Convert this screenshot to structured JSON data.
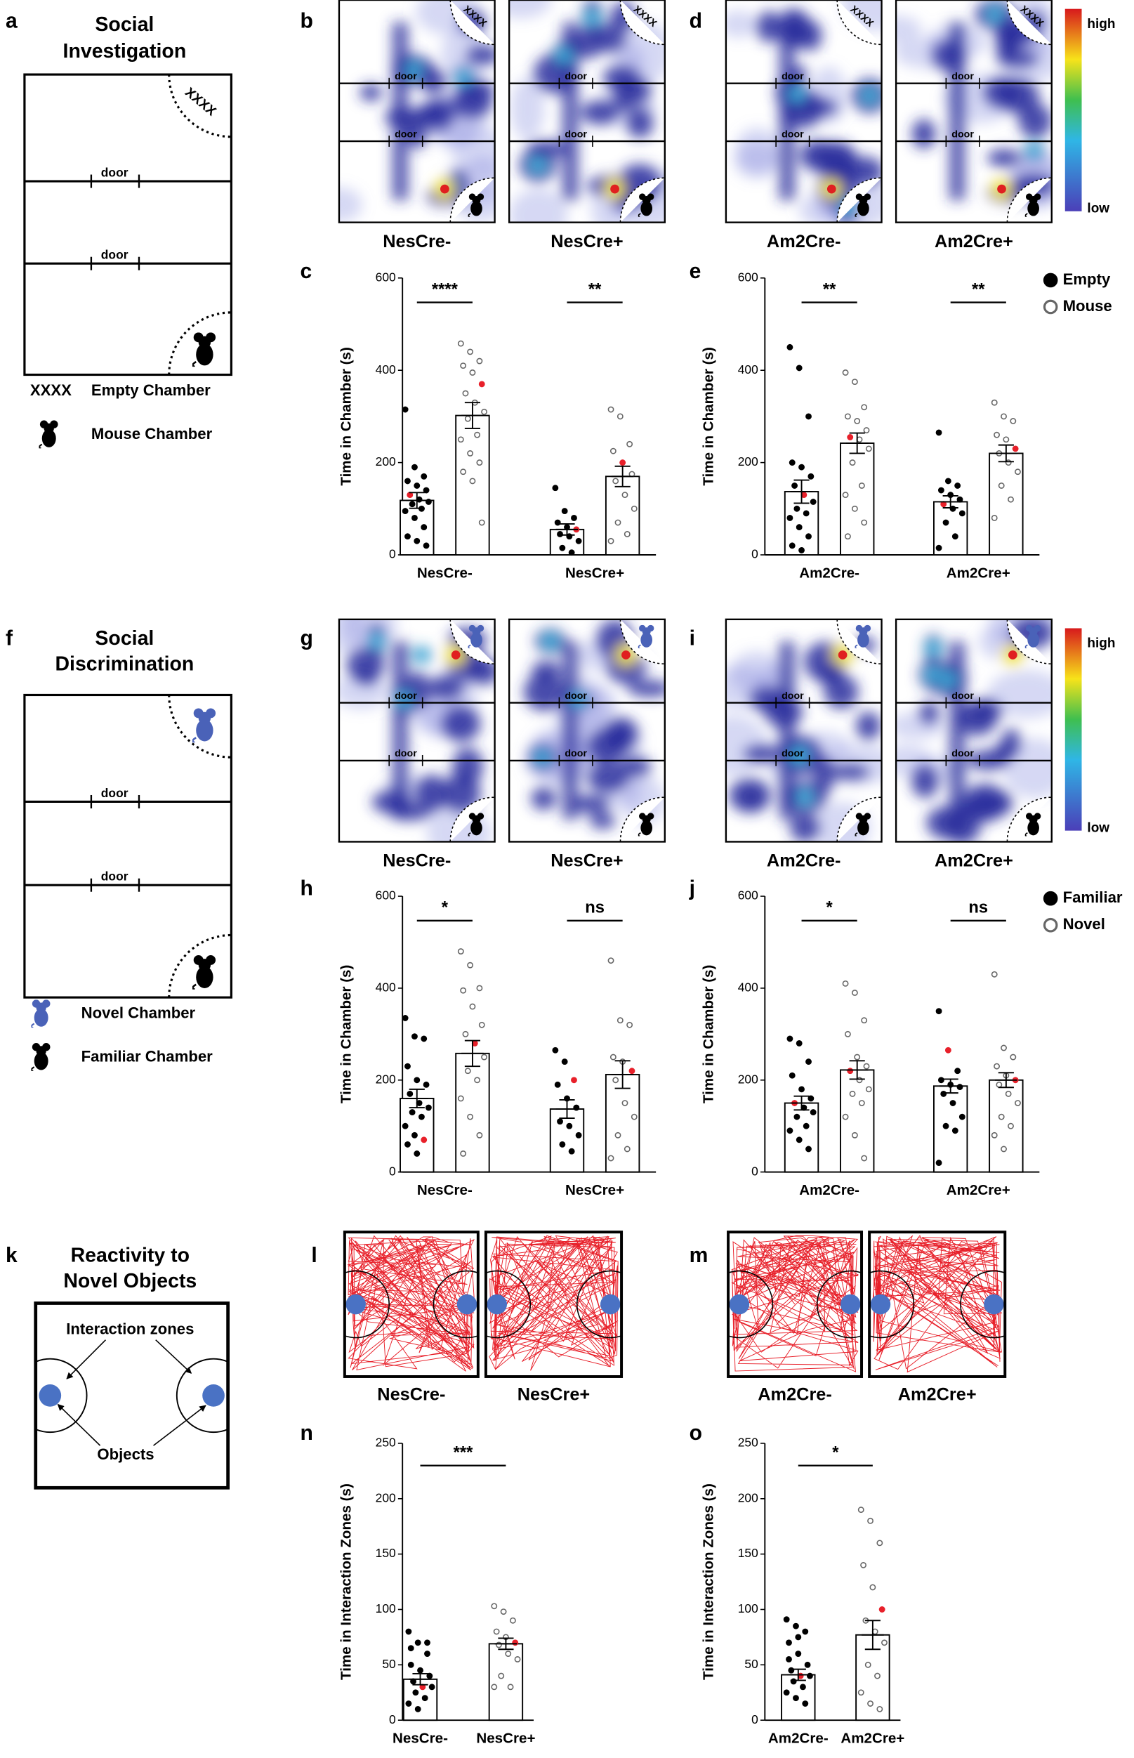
{
  "panel_letters": [
    "a",
    "b",
    "c",
    "d",
    "e",
    "f",
    "g",
    "h",
    "i",
    "j",
    "k",
    "l",
    "m",
    "n",
    "o"
  ],
  "door": "door",
  "schematics": {
    "investigation": {
      "title_lines": [
        "Social",
        "Investigation"
      ],
      "empty_symbol": "XXXX",
      "empty_label": "Empty Chamber",
      "mouse_label": "Mouse Chamber"
    },
    "discrimination": {
      "title_lines": [
        "Social",
        "Discrimination"
      ],
      "novel_label": "Novel Chamber",
      "familiar_label": "Familiar Chamber"
    },
    "objects": {
      "title_lines": [
        "Reactivity to",
        "Novel Objects"
      ],
      "zones_label": "Interaction zones",
      "objects_label": "Objects"
    }
  },
  "heatmaps": [
    {
      "labels": [
        "NesCre-",
        "NesCre+"
      ]
    },
    {
      "labels": [
        "Am2Cre-",
        "Am2Cre+"
      ]
    },
    {
      "labels": [
        "NesCre-",
        "NesCre+"
      ]
    },
    {
      "labels": [
        "Am2Cre-",
        "Am2Cre+"
      ]
    }
  ],
  "colorbar": {
    "high": "high",
    "low": "low"
  },
  "trajectories": [
    {
      "labels": [
        "NesCre-",
        "NesCre+"
      ]
    },
    {
      "labels": [
        "Am2Cre-",
        "Am2Cre+"
      ]
    }
  ],
  "chart_data": [
    {
      "type": "grouped_bar",
      "ylabel": "Time in Chamber (s)",
      "ylim": [
        0,
        600
      ],
      "yticks": [
        0,
        200,
        400,
        600
      ],
      "categories": [
        "NesCre-",
        "NesCre+"
      ],
      "significance": [
        "****",
        "**"
      ],
      "series": [
        {
          "point_color": "#000000",
          "values": [
            118,
            55
          ],
          "errors": [
            17,
            12
          ],
          "highlight": [
            6,
            5
          ],
          "points": [
            [
              315,
              190,
              170,
              160,
              150,
              140,
              130,
              120,
              115,
              110,
              100,
              95,
              80,
              60,
              40,
              30,
              20
            ],
            [
              145,
              95,
              80,
              70,
              60,
              55,
              45,
              40,
              30,
              15,
              5
            ]
          ]
        },
        {
          "point_color": "#ffffff",
          "values": [
            302,
            170
          ],
          "errors": [
            28,
            22
          ],
          "highlight": [
            5,
            4
          ],
          "points": [
            [
              458,
              440,
              420,
              410,
              395,
              370,
              350,
              330,
              310,
              295,
              260,
              250,
              220,
              200,
              180,
              160,
              70
            ],
            [
              315,
              300,
              240,
              225,
              200,
              175,
              160,
              130,
              100,
              70,
              45,
              30
            ]
          ]
        }
      ]
    },
    {
      "type": "grouped_bar",
      "ylabel": "Time in Chamber (s)",
      "ylim": [
        0,
        600
      ],
      "yticks": [
        0,
        200,
        400,
        600
      ],
      "categories": [
        "Am2Cre-",
        "Am2Cre+"
      ],
      "significance": [
        "**",
        "**"
      ],
      "series": [
        {
          "name": "Empty",
          "point_color": "#000000",
          "values": [
            137,
            115
          ],
          "errors": [
            25,
            13
          ],
          "highlight": [
            7,
            6
          ],
          "points": [
            [
              450,
              405,
              300,
              200,
              190,
              170,
              150,
              130,
              115,
              100,
              90,
              80,
              60,
              40,
              20,
              10
            ],
            [
              265,
              160,
              150,
              140,
              130,
              120,
              110,
              100,
              90,
              70,
              40,
              15
            ]
          ]
        },
        {
          "name": "Mouse",
          "point_color": "#ffffff",
          "values": [
            242,
            220
          ],
          "errors": [
            22,
            18
          ],
          "highlight": [
            6,
            5
          ],
          "points": [
            [
              395,
              375,
              320,
              300,
              290,
              270,
              255,
              250,
              230,
              200,
              150,
              130,
              100,
              70,
              40
            ],
            [
              330,
              300,
              290,
              260,
              250,
              230,
              220,
              200,
              180,
              150,
              120,
              80
            ]
          ]
        }
      ]
    },
    {
      "type": "grouped_bar",
      "ylabel": "Time in Chamber (s)",
      "ylim": [
        0,
        600
      ],
      "yticks": [
        0,
        200,
        400,
        600
      ],
      "categories": [
        "NesCre-",
        "NesCre+"
      ],
      "significance": [
        "*",
        "ns"
      ],
      "series": [
        {
          "point_color": "#000000",
          "values": [
            160,
            137
          ],
          "errors": [
            20,
            20
          ],
          "highlight": [
            13,
            2
          ],
          "points": [
            [
              335,
              295,
              290,
              230,
              200,
              190,
              170,
              150,
              140,
              130,
              120,
              100,
              80,
              70,
              60,
              40
            ],
            [
              265,
              240,
              200,
              190,
              160,
              140,
              110,
              100,
              80,
              60,
              45
            ]
          ]
        },
        {
          "point_color": "#ffffff",
          "values": [
            258,
            212
          ],
          "errors": [
            28,
            30
          ],
          "highlight": [
            7,
            5
          ],
          "points": [
            [
              480,
              450,
              400,
              395,
              360,
              320,
              300,
              280,
              250,
              220,
              200,
              160,
              120,
              80,
              40
            ],
            [
              460,
              330,
              320,
              250,
              240,
              220,
              200,
              150,
              120,
              80,
              50,
              30
            ]
          ]
        }
      ]
    },
    {
      "type": "grouped_bar",
      "ylabel": "Time in Chamber (s)",
      "ylim": [
        0,
        600
      ],
      "yticks": [
        0,
        200,
        400,
        600
      ],
      "categories": [
        "Am2Cre-",
        "Am2Cre+"
      ],
      "significance": [
        "*",
        "ns"
      ],
      "series": [
        {
          "name": "Familiar",
          "point_color": "#000000",
          "values": [
            150,
            187
          ],
          "errors": [
            15,
            15
          ],
          "highlight": [
            6,
            1
          ],
          "points": [
            [
              290,
              280,
              240,
              210,
              180,
              160,
              150,
              140,
              130,
              120,
              100,
              90,
              70,
              50
            ],
            [
              350,
              265,
              220,
              200,
              190,
              185,
              170,
              150,
              120,
              100,
              90,
              20
            ]
          ]
        },
        {
          "name": "Novel",
          "point_color": "#ffffff",
          "values": [
            222,
            200
          ],
          "errors": [
            20,
            16
          ],
          "highlight": [
            6,
            5
          ],
          "points": [
            [
              410,
              390,
              330,
              300,
              250,
              230,
              220,
              200,
              180,
              170,
              150,
              120,
              80,
              30
            ],
            [
              430,
              270,
              250,
              230,
              210,
              200,
              190,
              170,
              150,
              120,
              100,
              80,
              50
            ]
          ]
        }
      ]
    },
    {
      "type": "bar",
      "ylabel": "Time in Interaction Zones (s)",
      "ylim": [
        0,
        250
      ],
      "yticks": [
        0,
        50,
        100,
        150,
        200,
        250
      ],
      "categories": [
        "NesCre-",
        "NesCre+"
      ],
      "significance": "***",
      "values": [
        37,
        69
      ],
      "errors": [
        5,
        5
      ],
      "point_colors": [
        "#000000",
        "#ffffff"
      ],
      "highlight": [
        7,
        5
      ],
      "points": [
        [
          80,
          70,
          60,
          50,
          45,
          40,
          35,
          30,
          30,
          25,
          20,
          15,
          10,
          70,
          65
        ],
        [
          103,
          98,
          90,
          80,
          75,
          70,
          68,
          60,
          55,
          40,
          30,
          30
        ]
      ]
    },
    {
      "type": "bar",
      "ylabel": "Time in Interaction Zones (s)",
      "ylim": [
        0,
        250
      ],
      "yticks": [
        0,
        50,
        100,
        150,
        200,
        250
      ],
      "categories": [
        "Am2Cre-",
        "Am2Cre+"
      ],
      "significance": "*",
      "values": [
        41,
        77
      ],
      "errors": [
        5,
        13
      ],
      "point_colors": [
        "#000000",
        "#ffffff"
      ],
      "highlight": [
        7,
        5
      ],
      "points": [
        [
          91,
          85,
          80,
          70,
          60,
          50,
          45,
          40,
          40,
          35,
          30,
          25,
          20,
          15,
          55,
          75
        ],
        [
          190,
          180,
          160,
          140,
          120,
          100,
          90,
          80,
          70,
          50,
          40,
          25,
          15,
          10
        ]
      ]
    }
  ]
}
